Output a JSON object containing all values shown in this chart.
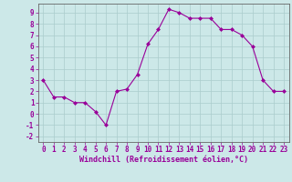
{
  "x": [
    0,
    1,
    2,
    3,
    4,
    5,
    6,
    7,
    8,
    9,
    10,
    11,
    12,
    13,
    14,
    15,
    16,
    17,
    18,
    19,
    20,
    21,
    22,
    23
  ],
  "y": [
    3.0,
    1.5,
    1.5,
    1.0,
    1.0,
    0.2,
    -1.0,
    2.0,
    2.2,
    3.5,
    6.2,
    7.5,
    9.3,
    9.0,
    8.5,
    8.5,
    8.5,
    7.5,
    7.5,
    7.0,
    6.0,
    3.0,
    2.0,
    2.0
  ],
  "line_color": "#990099",
  "marker": "D",
  "marker_size": 2.0,
  "bg_color": "#cce8e8",
  "grid_color": "#aacccc",
  "xlabel": "Windchill (Refroidissement éolien,°C)",
  "xlabel_fontsize": 6,
  "xtick_labels": [
    "0",
    "1",
    "2",
    "3",
    "4",
    "5",
    "6",
    "7",
    "8",
    "9",
    "10",
    "11",
    "12",
    "13",
    "14",
    "15",
    "16",
    "17",
    "18",
    "19",
    "20",
    "21",
    "22",
    "23"
  ],
  "ylim": [
    -2.5,
    9.8
  ],
  "xlim": [
    -0.5,
    23.5
  ],
  "tick_fontsize": 5.5,
  "linewidth": 0.8,
  "spine_color": "#666666"
}
